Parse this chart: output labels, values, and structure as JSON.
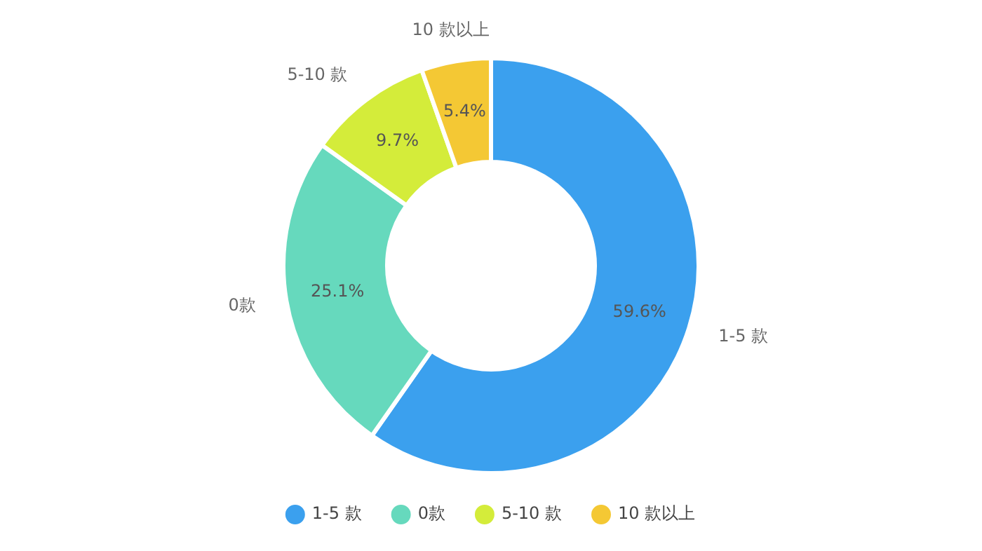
{
  "chart_data": {
    "type": "donut",
    "categories": [
      "1-5 款",
      "0款",
      "5-10 款",
      "10 款以上"
    ],
    "values": [
      59.6,
      25.1,
      9.7,
      5.4
    ],
    "value_labels": [
      "59.6%",
      "25.1%",
      "9.7%",
      "5.4%"
    ],
    "colors": [
      "#3ba0ee",
      "#66d9bd",
      "#d4ec3a",
      "#f4c834"
    ],
    "legend": "bottom"
  }
}
